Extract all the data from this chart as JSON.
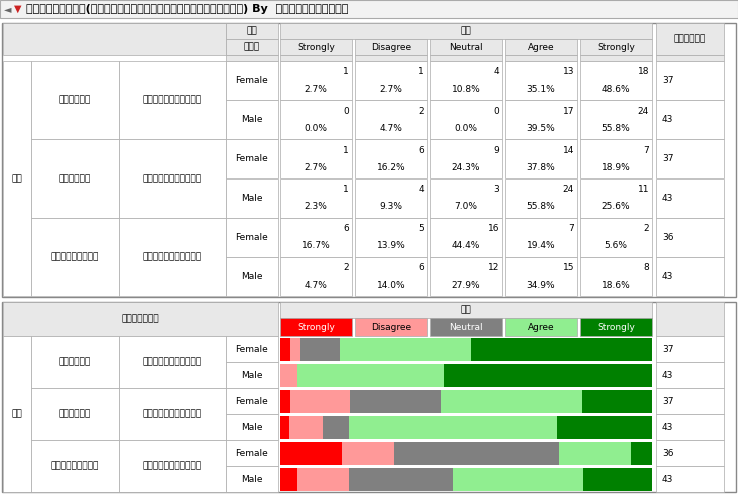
{
  "title": "共通の値をもつ応答(青が好きだ．，赤が好きだ．，オレンジが好きだ．) By  性別を教えてください。",
  "rows": [
    {
      "item": "青が好きだ。",
      "gender": "Female",
      "vals": [
        1,
        1,
        4,
        13,
        18
      ],
      "pcts": [
        "2.7%",
        "2.7%",
        "10.8%",
        "35.1%",
        "48.6%"
      ],
      "total": 37
    },
    {
      "item": "青が好きだ。",
      "gender": "Male",
      "vals": [
        0,
        2,
        0,
        17,
        24
      ],
      "pcts": [
        "0.0%",
        "4.7%",
        "0.0%",
        "39.5%",
        "55.8%"
      ],
      "total": 43
    },
    {
      "item": "赤が好きだ。",
      "gender": "Female",
      "vals": [
        1,
        6,
        9,
        14,
        7
      ],
      "pcts": [
        "2.7%",
        "16.2%",
        "24.3%",
        "37.8%",
        "18.9%"
      ],
      "total": 37
    },
    {
      "item": "赤が好きだ。",
      "gender": "Male",
      "vals": [
        1,
        4,
        3,
        24,
        11
      ],
      "pcts": [
        "2.3%",
        "9.3%",
        "7.0%",
        "55.8%",
        "25.6%"
      ],
      "total": 43
    },
    {
      "item": "オレンジが好きだ。",
      "gender": "Female",
      "vals": [
        6,
        5,
        16,
        7,
        2
      ],
      "pcts": [
        "16.7%",
        "13.9%",
        "44.4%",
        "19.4%",
        "5.6%"
      ],
      "total": 36
    },
    {
      "item": "オレンジが好きだ。",
      "gender": "Male",
      "vals": [
        2,
        6,
        12,
        15,
        8
      ],
      "pcts": [
        "4.7%",
        "14.0%",
        "27.9%",
        "34.9%",
        "18.6%"
      ],
      "total": 43
    }
  ],
  "likert_labels": [
    "Strongly",
    "Disagree",
    "Neutral",
    "Agree",
    "Strongly"
  ],
  "strongly_disagree_color": "#FF0000",
  "disagree_color": "#FF9999",
  "neutral_color": "#808080",
  "agree_color": "#90EE90",
  "strongly_agree_color": "#008000",
  "header_bg": "#E8E8E8",
  "title_bg": "#F0F0F0",
  "font_size": 6.5,
  "title_font_size": 8.0
}
